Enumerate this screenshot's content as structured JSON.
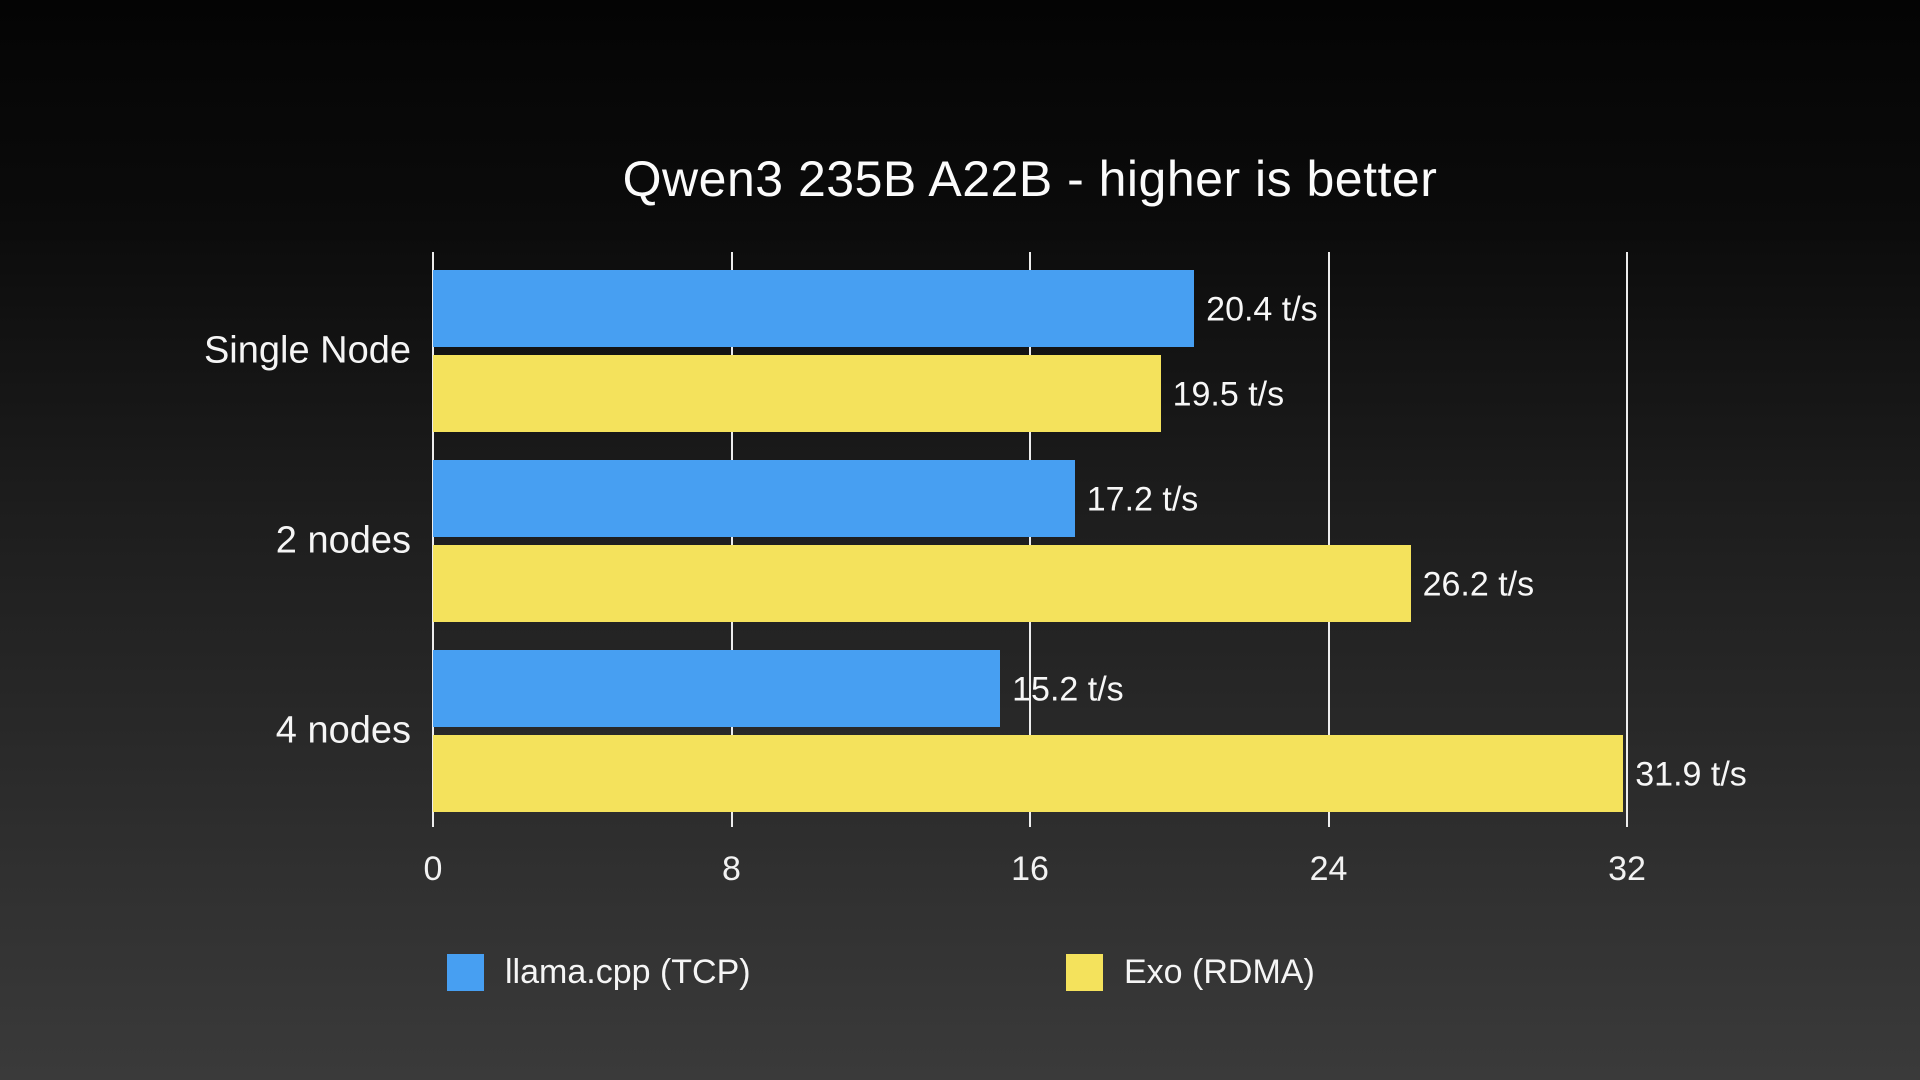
{
  "title": "Qwen3 235B A22B - higher is better",
  "colors": {
    "series1": "#479FF2",
    "series2": "#F4E25C",
    "text": "#F5F5F5",
    "gridline": "#FFFFFF",
    "background_top": "#040404",
    "background_bottom": "#3A3A3A"
  },
  "chart_data": {
    "type": "bar",
    "orientation": "horizontal",
    "title": "Qwen3 235B A22B - higher is better",
    "categories": [
      "Single Node",
      "2 nodes",
      "4 nodes"
    ],
    "series": [
      {
        "name": "llama.cpp (TCP)",
        "color": "#479FF2",
        "values": [
          20.4,
          17.2,
          15.2
        ]
      },
      {
        "name": "Exo (RDMA)",
        "color": "#F4E25C",
        "values": [
          19.5,
          26.2,
          31.9
        ]
      }
    ],
    "value_labels": [
      [
        "20.4 t/s",
        "17.2 t/s",
        "15.2 t/s"
      ],
      [
        "19.5 t/s",
        "26.2 t/s",
        "31.9 t/s"
      ]
    ],
    "value_suffix": " t/s",
    "xlabel": "",
    "ylabel": "",
    "xlim": [
      0,
      32
    ],
    "x_ticks": [
      "0",
      "8",
      "16",
      "24",
      "32"
    ],
    "grid": true,
    "legend_position": "bottom"
  },
  "legend": {
    "items": [
      {
        "label": "llama.cpp (TCP)",
        "color": "#479FF2"
      },
      {
        "label": "Exo (RDMA)",
        "color": "#F4E25C"
      }
    ]
  }
}
